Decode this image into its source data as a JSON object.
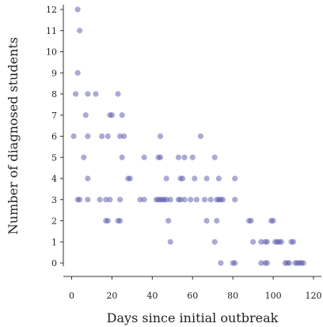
{
  "chart_data": {
    "type": "scatter",
    "title": "",
    "xlabel": "Days since initial outbreak",
    "ylabel": "Number of diagnosed students",
    "xlim": [
      -4,
      123
    ],
    "ylim": [
      -0.5,
      12.2
    ],
    "xticks": [
      0,
      20,
      40,
      60,
      80,
      100,
      120
    ],
    "yticks": [
      0,
      1,
      2,
      3,
      4,
      5,
      6,
      7,
      8,
      9,
      10,
      11,
      12
    ],
    "grid": false,
    "legend": "none",
    "marker_color": "#5555aa",
    "marker_opacity": 0.5,
    "points": [
      {
        "x": 3,
        "y": 12
      },
      {
        "x": 4,
        "y": 11
      },
      {
        "x": 3,
        "y": 9
      },
      {
        "x": 2,
        "y": 8
      },
      {
        "x": 8,
        "y": 8
      },
      {
        "x": 12,
        "y": 8
      },
      {
        "x": 23,
        "y": 8
      },
      {
        "x": 7,
        "y": 7
      },
      {
        "x": 19,
        "y": 7
      },
      {
        "x": 20,
        "y": 7
      },
      {
        "x": 25,
        "y": 7
      },
      {
        "x": 1,
        "y": 6
      },
      {
        "x": 8,
        "y": 6
      },
      {
        "x": 15,
        "y": 6
      },
      {
        "x": 18,
        "y": 6
      },
      {
        "x": 24,
        "y": 6
      },
      {
        "x": 26,
        "y": 6
      },
      {
        "x": 44,
        "y": 6
      },
      {
        "x": 64,
        "y": 6
      },
      {
        "x": 6,
        "y": 5
      },
      {
        "x": 25,
        "y": 5
      },
      {
        "x": 36,
        "y": 5
      },
      {
        "x": 43,
        "y": 5
      },
      {
        "x": 44,
        "y": 5
      },
      {
        "x": 53,
        "y": 5
      },
      {
        "x": 56,
        "y": 5
      },
      {
        "x": 60,
        "y": 5
      },
      {
        "x": 71,
        "y": 5
      },
      {
        "x": 8,
        "y": 4
      },
      {
        "x": 28,
        "y": 4
      },
      {
        "x": 29,
        "y": 4
      },
      {
        "x": 47,
        "y": 4
      },
      {
        "x": 54,
        "y": 4
      },
      {
        "x": 55,
        "y": 4
      },
      {
        "x": 61,
        "y": 4
      },
      {
        "x": 67,
        "y": 4
      },
      {
        "x": 73,
        "y": 4
      },
      {
        "x": 81,
        "y": 4
      },
      {
        "x": 3,
        "y": 3
      },
      {
        "x": 4,
        "y": 3
      },
      {
        "x": 8,
        "y": 3
      },
      {
        "x": 14,
        "y": 3
      },
      {
        "x": 17,
        "y": 3
      },
      {
        "x": 19,
        "y": 3
      },
      {
        "x": 24,
        "y": 3
      },
      {
        "x": 34,
        "y": 3
      },
      {
        "x": 36,
        "y": 3
      },
      {
        "x": 42,
        "y": 3
      },
      {
        "x": 43,
        "y": 3
      },
      {
        "x": 44,
        "y": 3
      },
      {
        "x": 45,
        "y": 3
      },
      {
        "x": 46,
        "y": 3
      },
      {
        "x": 47,
        "y": 3
      },
      {
        "x": 49,
        "y": 3
      },
      {
        "x": 53,
        "y": 3
      },
      {
        "x": 54,
        "y": 3
      },
      {
        "x": 56,
        "y": 3
      },
      {
        "x": 59,
        "y": 3
      },
      {
        "x": 62,
        "y": 3
      },
      {
        "x": 66,
        "y": 3
      },
      {
        "x": 69,
        "y": 3
      },
      {
        "x": 72,
        "y": 3
      },
      {
        "x": 73,
        "y": 3
      },
      {
        "x": 74,
        "y": 3
      },
      {
        "x": 75,
        "y": 3
      },
      {
        "x": 81,
        "y": 3
      },
      {
        "x": 17,
        "y": 2
      },
      {
        "x": 18,
        "y": 2
      },
      {
        "x": 23,
        "y": 2
      },
      {
        "x": 24,
        "y": 2
      },
      {
        "x": 48,
        "y": 2
      },
      {
        "x": 67,
        "y": 2
      },
      {
        "x": 72,
        "y": 2
      },
      {
        "x": 88,
        "y": 2
      },
      {
        "x": 89,
        "y": 2
      },
      {
        "x": 99,
        "y": 2
      },
      {
        "x": 100,
        "y": 2
      },
      {
        "x": 49,
        "y": 1
      },
      {
        "x": 71,
        "y": 1
      },
      {
        "x": 90,
        "y": 1
      },
      {
        "x": 94,
        "y": 1
      },
      {
        "x": 96,
        "y": 1
      },
      {
        "x": 97,
        "y": 1
      },
      {
        "x": 101,
        "y": 1
      },
      {
        "x": 102,
        "y": 1
      },
      {
        "x": 103,
        "y": 1
      },
      {
        "x": 104,
        "y": 1
      },
      {
        "x": 109,
        "y": 1
      },
      {
        "x": 110,
        "y": 1
      },
      {
        "x": 74,
        "y": 0
      },
      {
        "x": 80,
        "y": 0
      },
      {
        "x": 81,
        "y": 0
      },
      {
        "x": 94,
        "y": 0
      },
      {
        "x": 96,
        "y": 0
      },
      {
        "x": 97,
        "y": 0
      },
      {
        "x": 106,
        "y": 0
      },
      {
        "x": 107,
        "y": 0
      },
      {
        "x": 108,
        "y": 0
      },
      {
        "x": 111,
        "y": 0
      },
      {
        "x": 112,
        "y": 0
      },
      {
        "x": 113,
        "y": 0
      },
      {
        "x": 114,
        "y": 0
      },
      {
        "x": 115,
        "y": 0
      }
    ]
  }
}
